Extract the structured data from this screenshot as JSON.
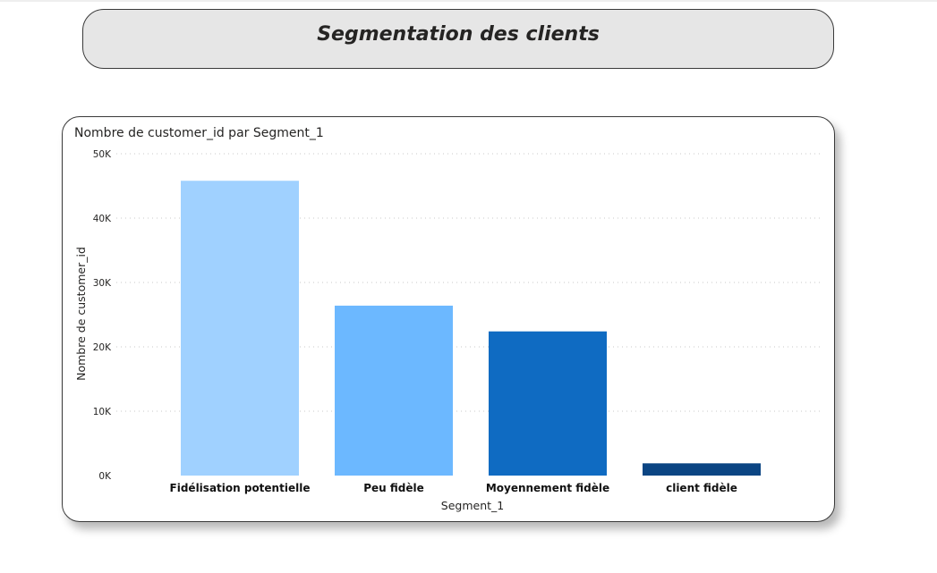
{
  "page": {
    "title": "Segmentation des clients"
  },
  "chart_data": {
    "type": "bar",
    "title": "Nombre de customer_id par Segment_1",
    "xlabel": "Segment_1",
    "ylabel": "Nombre de customer_id",
    "categories": [
      "Fidélisation potentielle",
      "Peu fidèle",
      "Moyennement fidèle",
      "client fidèle"
    ],
    "values": [
      45800,
      26400,
      22400,
      1900
    ],
    "colors": [
      "#a0d1ff",
      "#6cb8ff",
      "#0f6bc2",
      "#0b4583"
    ],
    "ylim": [
      0,
      50000
    ],
    "yticks": [
      0,
      10000,
      20000,
      30000,
      40000,
      50000
    ],
    "ytick_labels": [
      "0K",
      "10K",
      "20K",
      "30K",
      "40K",
      "50K"
    ],
    "grid": true,
    "legend": "none"
  }
}
